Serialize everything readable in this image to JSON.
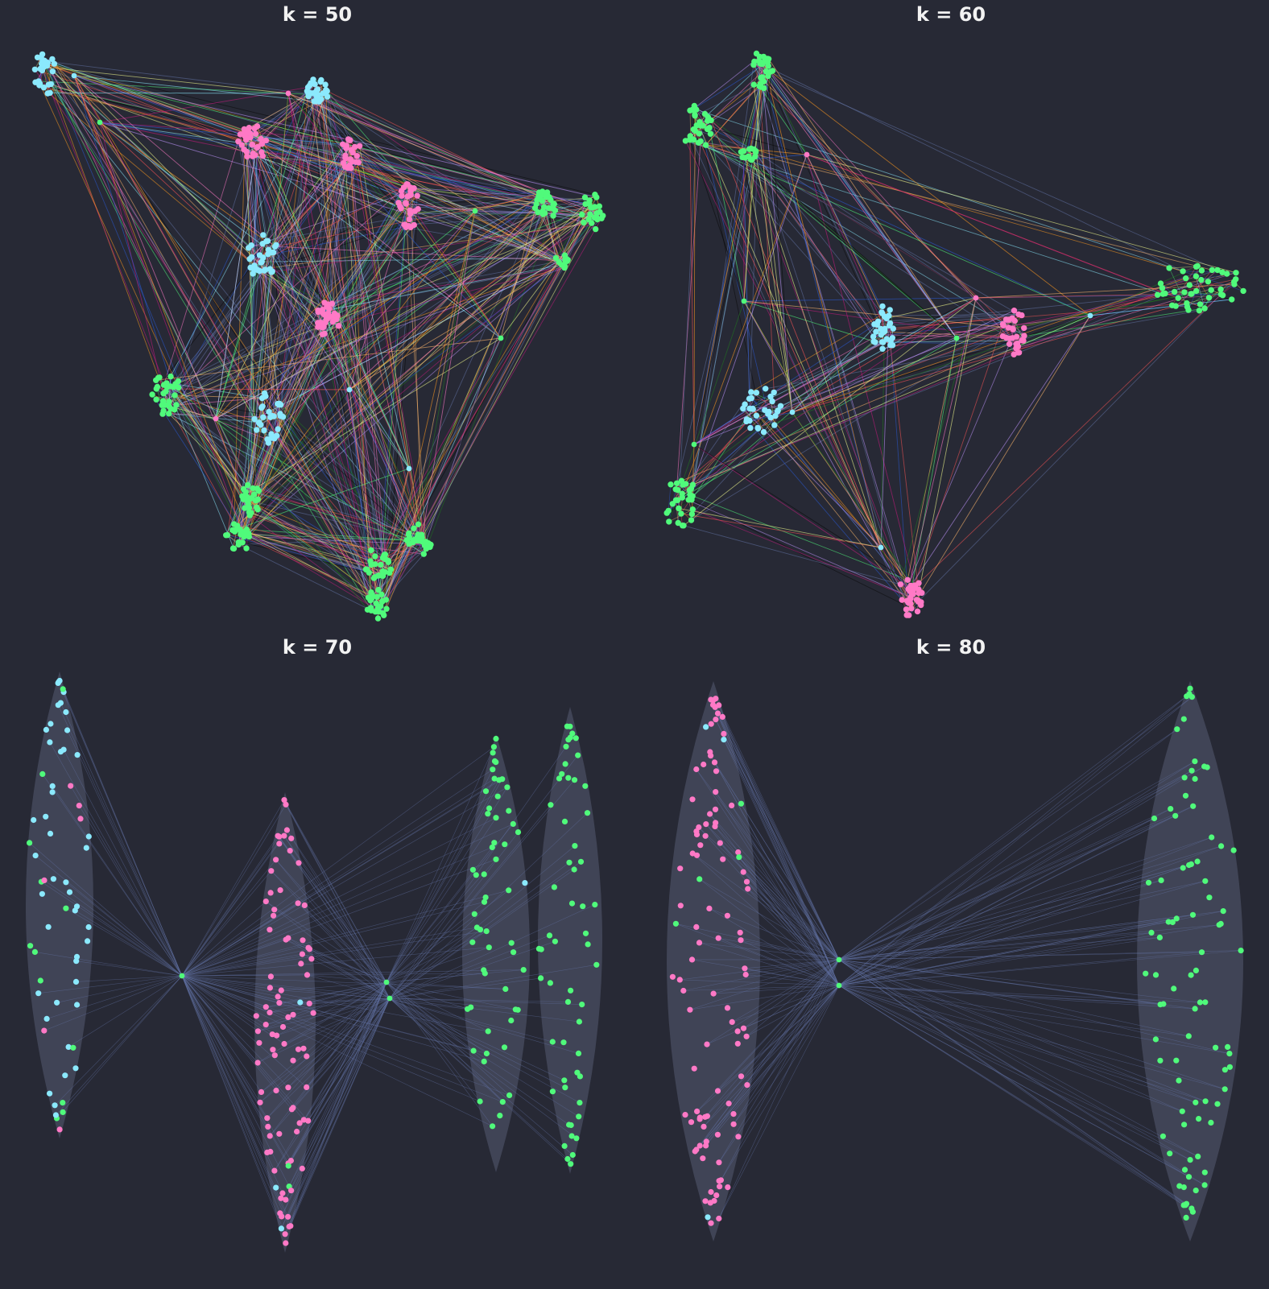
{
  "figure": {
    "background": "#272935",
    "node_colors": {
      "cyan": "#8be9fd",
      "pink": "#ff79c6",
      "green": "#50fa7b"
    },
    "community_fill": "#44475a",
    "edge_color_base": "#6272a4",
    "edge_palette": [
      "#ffb86c",
      "#f1fa8c",
      "#50fa7b",
      "#ff5555",
      "#bd93f9",
      "#ff79c6",
      "#8be9fd",
      "#ff9a1f",
      "#2a5bd7",
      "#c51b7d",
      "#1f7a1f",
      "#0a0a0a"
    ]
  },
  "panels": [
    {
      "title": "k = 50",
      "layout": "force",
      "clusters": [
        {
          "color": "cyan",
          "n": 28,
          "hub": false
        },
        {
          "color": "cyan",
          "n": 28,
          "hub": false
        },
        {
          "color": "pink",
          "n": 30,
          "hub": false
        },
        {
          "color": "pink",
          "n": 24,
          "hub": false
        },
        {
          "color": "pink",
          "n": 30,
          "hub": false
        },
        {
          "color": "green",
          "n": 28,
          "hub": false
        },
        {
          "color": "green",
          "n": 24,
          "hub": false
        },
        {
          "color": "green",
          "n": 10,
          "hub": false
        },
        {
          "color": "cyan",
          "n": 30,
          "hub": false
        },
        {
          "color": "pink",
          "n": 30,
          "hub": false
        },
        {
          "color": "green",
          "n": 30,
          "hub": false
        },
        {
          "color": "cyan",
          "n": 30,
          "hub": false
        },
        {
          "color": "green",
          "n": 22,
          "hub": false
        },
        {
          "color": "green",
          "n": 24,
          "hub": false
        },
        {
          "color": "green",
          "n": 26,
          "hub": false
        },
        {
          "color": "green",
          "n": 24,
          "hub": false
        },
        {
          "color": "green",
          "n": 24,
          "hub": false
        }
      ]
    },
    {
      "title": "k = 60",
      "layout": "force",
      "clusters": [
        {
          "color": "green",
          "n": 28,
          "hub": false
        },
        {
          "color": "green",
          "n": 30,
          "hub": false
        },
        {
          "color": "green",
          "n": 14,
          "hub": false
        },
        {
          "color": "cyan",
          "n": 30,
          "hub": false
        },
        {
          "color": "pink",
          "n": 30,
          "hub": false
        },
        {
          "color": "green",
          "n": 44,
          "hub": false
        },
        {
          "color": "cyan",
          "n": 30,
          "hub": false
        },
        {
          "color": "green",
          "n": 30,
          "hub": false
        },
        {
          "color": "pink",
          "n": 30,
          "hub": false
        }
      ]
    },
    {
      "title": "k = 70",
      "layout": "communities",
      "communities": [
        {
          "n": 62,
          "mix": {
            "cyan": 0.84,
            "green": 0.1,
            "pink": 0.06
          }
        },
        {
          "n": 92,
          "mix": {
            "pink": 0.93,
            "green": 0.04,
            "cyan": 0.03
          }
        },
        {
          "n": 56,
          "mix": {
            "green": 0.98,
            "cyan": 0.02
          }
        },
        {
          "n": 56,
          "mix": {
            "green": 1.0
          }
        }
      ],
      "connectors": 3
    },
    {
      "title": "k = 80",
      "layout": "communities",
      "communities": [
        {
          "n": 104,
          "mix": {
            "pink": 0.94,
            "green": 0.03,
            "cyan": 0.03
          }
        },
        {
          "n": 84,
          "mix": {
            "green": 1.0
          }
        }
      ],
      "connectors": 2
    }
  ]
}
